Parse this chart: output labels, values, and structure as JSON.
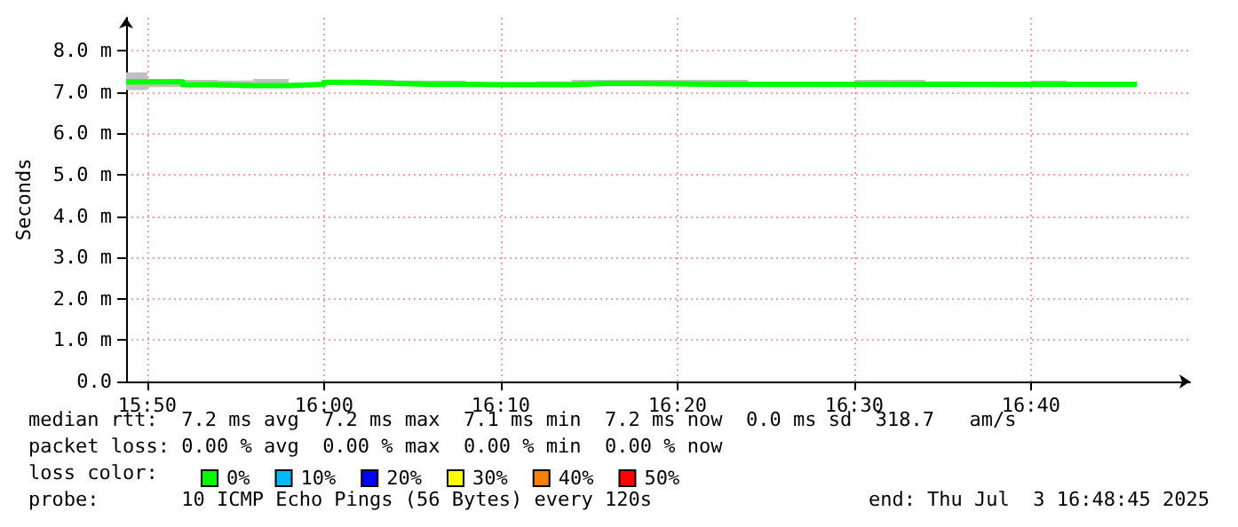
{
  "chart_data": {
    "type": "step",
    "ylabel": "Seconds",
    "x": [
      15.8133,
      15.8333,
      15.8667,
      15.9,
      15.9333,
      15.9667,
      16.0,
      16.0333,
      16.0667,
      16.1,
      16.1333,
      16.1667,
      16.2,
      16.2333,
      16.2667,
      16.3,
      16.3333,
      16.3667,
      16.4,
      16.4333,
      16.4667,
      16.5,
      16.5333,
      16.5667,
      16.6,
      16.6333,
      16.6667,
      16.7,
      16.7333,
      16.7667
    ],
    "series": [
      {
        "name": "0%",
        "color": "#00ff00",
        "values": [
          7.25,
          7.25,
          7.18,
          7.16,
          7.16,
          7.19,
          7.24,
          7.21,
          7.19,
          7.19,
          7.18,
          7.18,
          7.18,
          7.21,
          7.21,
          7.2,
          7.19,
          7.19,
          7.19,
          7.19,
          7.19,
          7.19,
          7.19,
          7.19,
          7.19,
          7.19,
          7.19,
          7.19,
          7.19,
          7.19
        ],
        "lower": [
          7.05,
          7.12,
          7.14,
          7.1,
          7.12,
          7.16,
          7.18,
          7.16,
          7.16,
          7.16,
          7.14,
          7.14,
          7.14,
          7.16,
          7.16,
          7.14,
          7.14,
          7.14,
          7.16,
          7.16,
          7.14,
          7.16,
          7.16,
          7.14,
          7.16,
          7.12,
          7.16,
          7.16,
          7.16,
          7.16
        ],
        "upper": [
          7.48,
          7.32,
          7.3,
          7.28,
          7.32,
          7.22,
          7.3,
          7.3,
          7.28,
          7.28,
          7.24,
          7.24,
          7.26,
          7.3,
          7.3,
          7.3,
          7.3,
          7.3,
          7.24,
          7.24,
          7.24,
          7.3,
          7.3,
          7.26,
          7.24,
          7.24,
          7.28,
          7.24,
          7.24,
          7.24
        ]
      },
      {
        "name": "10%",
        "color": "#00b8ff",
        "values": [
          null,
          null,
          null,
          null,
          null,
          null,
          null,
          null,
          null,
          null,
          null,
          null,
          null,
          null,
          null,
          null,
          null,
          null,
          null,
          null,
          null,
          null,
          null,
          null,
          null,
          null,
          null,
          null,
          null,
          null
        ]
      },
      {
        "name": "20%",
        "color": "#0000ff",
        "values": [
          null,
          null,
          null,
          null,
          null,
          null,
          null,
          null,
          null,
          null,
          null,
          null,
          null,
          null,
          null,
          null,
          null,
          null,
          null,
          null,
          null,
          null,
          null,
          null,
          null,
          null,
          null,
          null,
          null,
          null
        ]
      },
      {
        "name": "30%",
        "color": "#ffff00",
        "values": [
          null,
          null,
          null,
          null,
          null,
          null,
          null,
          null,
          null,
          null,
          null,
          null,
          null,
          null,
          null,
          null,
          null,
          null,
          null,
          null,
          null,
          null,
          null,
          null,
          null,
          null,
          null,
          null,
          null,
          null
        ]
      },
      {
        "name": "40%",
        "color": "#ff8000",
        "values": [
          null,
          null,
          null,
          null,
          null,
          null,
          null,
          null,
          null,
          null,
          null,
          null,
          null,
          null,
          null,
          null,
          null,
          null,
          null,
          null,
          null,
          null,
          null,
          null,
          null,
          null,
          null,
          null,
          null,
          null
        ]
      },
      {
        "name": "50%",
        "color": "#ff0000",
        "values": [
          null,
          null,
          null,
          null,
          null,
          null,
          null,
          null,
          null,
          null,
          null,
          null,
          null,
          null,
          null,
          null,
          null,
          null,
          null,
          null,
          null,
          null,
          null,
          null,
          null,
          null,
          null,
          null,
          null,
          null
        ]
      }
    ],
    "xlim": [
      15.8133,
      16.8167
    ],
    "xticks": [
      {
        "value": 15.8333,
        "label": "15:50"
      },
      {
        "value": 16.0,
        "label": "16:00"
      },
      {
        "value": 16.1667,
        "label": "16:10"
      },
      {
        "value": 16.3333,
        "label": "16:20"
      },
      {
        "value": 16.5,
        "label": "16:30"
      },
      {
        "value": 16.6667,
        "label": "16:40"
      }
    ],
    "ylim": [
      0,
      8.8
    ],
    "yticks": [
      {
        "value": 0,
        "label": "0.0"
      },
      {
        "value": 1,
        "label": "1.0 m"
      },
      {
        "value": 2,
        "label": "2.0 m"
      },
      {
        "value": 3,
        "label": "3.0 m"
      },
      {
        "value": 4,
        "label": "4.0 m"
      },
      {
        "value": 5,
        "label": "5.0 m"
      },
      {
        "value": 6,
        "label": "6.0 m"
      },
      {
        "value": 7,
        "label": "7.0 m"
      },
      {
        "value": 8,
        "label": "8.0 m"
      }
    ],
    "grid": true,
    "legend": "bottom left",
    "marker": "none",
    "line_style": "solid",
    "annotations": [
      "median rtt:  7.2 ms avg  7.2 ms max  7.1 ms min  7.2 ms now  0.0 ms sd  318.7   am/s",
      "packet loss: 0.00 % avg  0.00 % max  0.00 % min  0.00 % now",
      "loss color:",
      "probe:       10 ICMP Echo Pings (56 Bytes) every 120s",
      "end: Thu Jul  3 16:48:45 2025"
    ]
  }
}
